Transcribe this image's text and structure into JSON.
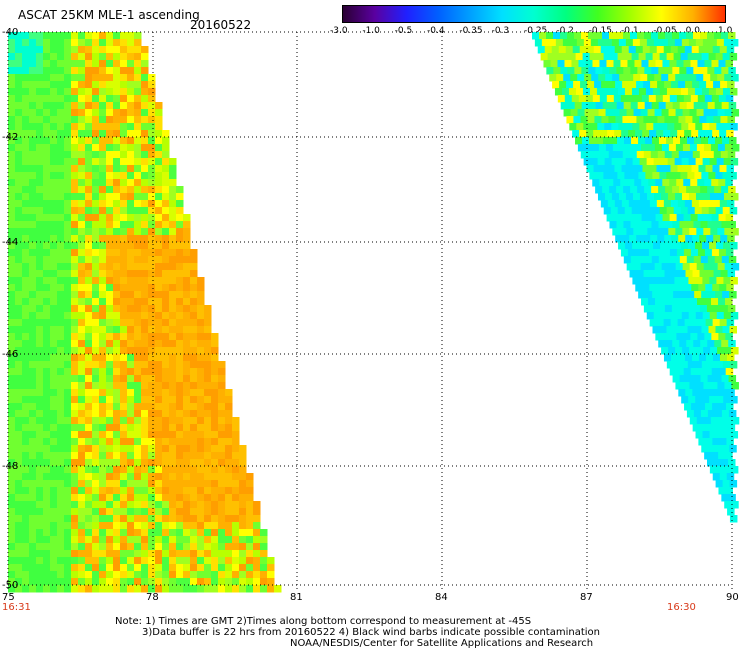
{
  "header": {
    "title": "ASCAT 25KM MLE-1 ascending",
    "date": "20160522"
  },
  "colorbar": {
    "labels": [
      "-3.0",
      "-1.0",
      "-0.5",
      "-0.4",
      "-0.35",
      "-0.3",
      "-0.25",
      "-0.2",
      "-0.15",
      "-0.1",
      "-0.05",
      "0.0",
      "1.0"
    ],
    "colors": [
      "#2a0033",
      "#5a00a0",
      "#2020ff",
      "#0060ff",
      "#00a0ff",
      "#00e0ff",
      "#00ffd0",
      "#00ff80",
      "#40ff20",
      "#a0ff00",
      "#ffff00",
      "#ffb000",
      "#ff3000"
    ]
  },
  "map": {
    "lat_labels": [
      "-40",
      "-42",
      "-44",
      "-46",
      "-48",
      "-50"
    ],
    "lon_labels": [
      "75",
      "78",
      "81",
      "84",
      "87",
      "90"
    ],
    "times": [
      "16:31",
      "16:30"
    ]
  },
  "footer": {
    "line1": "Note: 1) Times are GMT 2)Times along bottom correspond to measurement at -45S",
    "line2": "3)Data buffer is 22 hrs from 20160522 4) Black wind barbs indicate possible contamination",
    "line3": "NOAA/NESDIS/Center for Satellite Applications and Research"
  }
}
